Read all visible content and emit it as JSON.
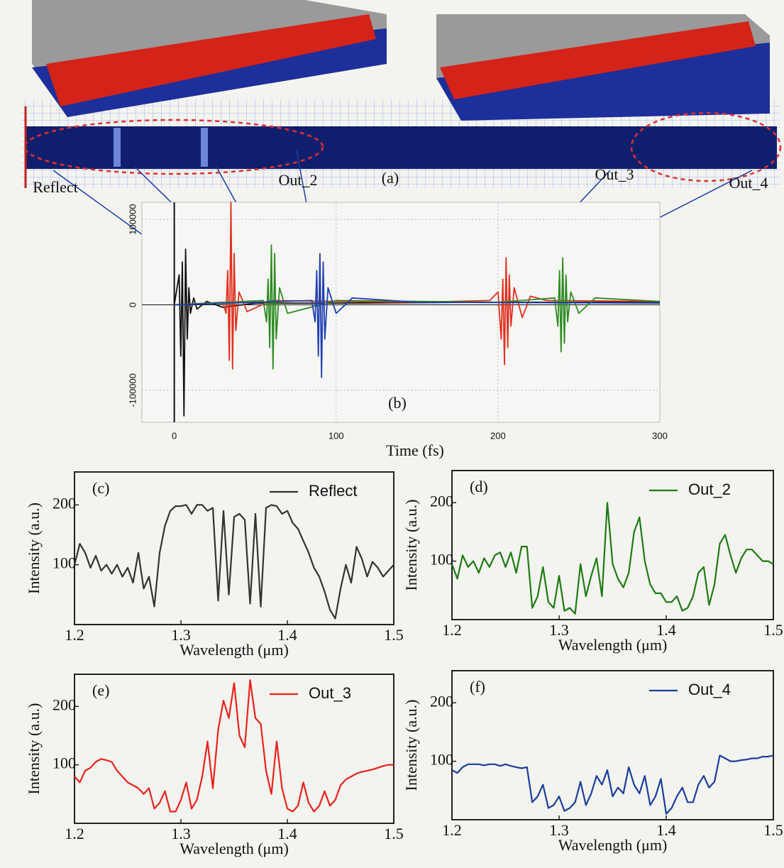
{
  "panel_a": {
    "label": "(a)",
    "ports": [
      "Reflect",
      "Out_2",
      "Out_3",
      "Out_4"
    ]
  },
  "chart_data": [
    {
      "type": "line",
      "label": "(b)",
      "xlabel": "Time (fs)",
      "xlim": [
        -20,
        300
      ],
      "ylim": [
        -137500,
        120000
      ],
      "xticks": [
        0,
        100,
        200,
        300
      ],
      "yticks": [
        -100000,
        0,
        100000
      ],
      "grid": true,
      "series": [
        {
          "color": "#111111",
          "x": [
            0,
            3,
            4,
            5,
            6,
            7,
            8,
            9,
            10,
            12,
            14,
            20,
            30,
            50,
            100,
            200,
            300
          ],
          "values": [
            0,
            35000,
            -60000,
            50000,
            -130000,
            65000,
            -40000,
            20000,
            -10000,
            8000,
            -5000,
            4000,
            -3000,
            2000,
            2000,
            3000,
            3000
          ]
        },
        {
          "color": "#e0301e",
          "x": [
            0,
            30,
            32,
            33,
            34,
            35,
            36,
            37,
            38,
            40,
            45,
            60,
            100,
            150,
            195,
            200,
            202,
            203,
            204,
            205,
            206,
            207,
            208,
            210,
            215,
            220,
            230,
            300
          ],
          "values": [
            0,
            3000,
            -10000,
            40000,
            -65000,
            120000,
            -75000,
            60000,
            -30000,
            15000,
            -8000,
            5000,
            4000,
            3000,
            5000,
            15000,
            -40000,
            30000,
            -70000,
            55000,
            -50000,
            35000,
            -25000,
            20000,
            -15000,
            10000,
            5000,
            4000
          ]
        },
        {
          "color": "#2e8b22",
          "x": [
            0,
            55,
            57,
            58,
            59,
            60,
            61,
            62,
            63,
            65,
            70,
            100,
            200,
            235,
            237,
            238,
            239,
            240,
            241,
            242,
            243,
            245,
            250,
            260,
            300
          ],
          "values": [
            0,
            5000,
            -20000,
            30000,
            -50000,
            70000,
            -75000,
            60000,
            -40000,
            20000,
            -10000,
            5000,
            3000,
            8000,
            -25000,
            40000,
            -55000,
            55000,
            -45000,
            35000,
            -20000,
            15000,
            -10000,
            8000,
            4000
          ]
        },
        {
          "color": "#1f3fb0",
          "x": [
            0,
            85,
            87,
            88,
            89,
            90,
            91,
            92,
            93,
            95,
            100,
            110,
            150,
            300
          ],
          "values": [
            0,
            5000,
            -20000,
            40000,
            -60000,
            60000,
            -85000,
            50000,
            -40000,
            20000,
            -10000,
            8000,
            3000,
            2000
          ]
        }
      ]
    },
    {
      "type": "line",
      "label": "(c)",
      "xlabel": "Wavelength (μm)",
      "ylabel": "Intensity (a.u.)",
      "xlim": [
        1.2,
        1.5
      ],
      "ylim": [
        0,
        255
      ],
      "xticks": [
        1.2,
        1.3,
        1.4,
        1.5
      ],
      "yticks": [
        100,
        200
      ],
      "legend": "top-right",
      "x": [
        1.2,
        1.205,
        1.21,
        1.215,
        1.22,
        1.225,
        1.23,
        1.235,
        1.24,
        1.245,
        1.25,
        1.255,
        1.26,
        1.265,
        1.27,
        1.275,
        1.28,
        1.285,
        1.29,
        1.295,
        1.3,
        1.305,
        1.31,
        1.315,
        1.32,
        1.325,
        1.33,
        1.335,
        1.34,
        1.345,
        1.35,
        1.355,
        1.36,
        1.365,
        1.37,
        1.375,
        1.38,
        1.385,
        1.39,
        1.395,
        1.4,
        1.405,
        1.41,
        1.415,
        1.42,
        1.425,
        1.43,
        1.435,
        1.44,
        1.445,
        1.45,
        1.455,
        1.46,
        1.465,
        1.47,
        1.475,
        1.48,
        1.485,
        1.49,
        1.495,
        1.5
      ],
      "series": [
        {
          "name": "Reflect",
          "color": "#333333",
          "values": [
            100,
            135,
            120,
            95,
            115,
            90,
            100,
            85,
            100,
            80,
            95,
            70,
            120,
            60,
            80,
            30,
            120,
            165,
            190,
            198,
            198,
            200,
            185,
            200,
            200,
            190,
            195,
            40,
            190,
            50,
            180,
            185,
            175,
            35,
            185,
            30,
            195,
            200,
            198,
            185,
            190,
            170,
            160,
            140,
            120,
            95,
            80,
            55,
            25,
            10,
            60,
            100,
            70,
            130,
            110,
            80,
            105,
            95,
            80,
            90,
            100
          ]
        }
      ]
    },
    {
      "type": "line",
      "label": "(d)",
      "xlabel": "Wavelength (μm)",
      "ylabel": "Intensity (a.u.)",
      "xlim": [
        1.2,
        1.5
      ],
      "ylim": [
        0,
        255
      ],
      "xticks": [
        1.2,
        1.3,
        1.4,
        1.5
      ],
      "yticks": [
        100,
        200
      ],
      "legend": "top-right",
      "x": [
        1.2,
        1.205,
        1.21,
        1.215,
        1.22,
        1.225,
        1.23,
        1.235,
        1.24,
        1.245,
        1.25,
        1.255,
        1.26,
        1.265,
        1.27,
        1.275,
        1.28,
        1.285,
        1.29,
        1.295,
        1.3,
        1.305,
        1.31,
        1.315,
        1.32,
        1.325,
        1.33,
        1.335,
        1.34,
        1.345,
        1.35,
        1.355,
        1.36,
        1.365,
        1.37,
        1.375,
        1.38,
        1.385,
        1.39,
        1.395,
        1.4,
        1.405,
        1.41,
        1.415,
        1.42,
        1.425,
        1.43,
        1.435,
        1.44,
        1.445,
        1.45,
        1.455,
        1.46,
        1.465,
        1.47,
        1.475,
        1.48,
        1.485,
        1.49,
        1.495,
        1.5
      ],
      "series": [
        {
          "name": "Out_2",
          "color": "#1e7a14",
          "values": [
            95,
            70,
            110,
            90,
            100,
            80,
            105,
            90,
            110,
            115,
            90,
            115,
            80,
            125,
            125,
            20,
            40,
            90,
            30,
            20,
            75,
            15,
            20,
            10,
            95,
            40,
            75,
            105,
            40,
            200,
            95,
            70,
            55,
            80,
            150,
            175,
            100,
            60,
            45,
            45,
            30,
            30,
            40,
            15,
            20,
            40,
            80,
            90,
            25,
            60,
            130,
            145,
            110,
            80,
            105,
            120,
            120,
            110,
            100,
            100,
            95
          ]
        }
      ]
    },
    {
      "type": "line",
      "label": "(e)",
      "xlabel": "Wavelength (μm)",
      "ylabel": "Intensity (a.u.)",
      "xlim": [
        1.2,
        1.5
      ],
      "ylim": [
        0,
        255
      ],
      "xticks": [
        1.2,
        1.3,
        1.4,
        1.5
      ],
      "yticks": [
        100,
        200
      ],
      "legend": "top-right",
      "x": [
        1.2,
        1.205,
        1.21,
        1.215,
        1.22,
        1.225,
        1.23,
        1.235,
        1.24,
        1.245,
        1.25,
        1.255,
        1.26,
        1.265,
        1.27,
        1.275,
        1.28,
        1.285,
        1.29,
        1.295,
        1.3,
        1.305,
        1.31,
        1.315,
        1.32,
        1.325,
        1.33,
        1.335,
        1.34,
        1.345,
        1.35,
        1.355,
        1.36,
        1.365,
        1.37,
        1.375,
        1.38,
        1.385,
        1.39,
        1.395,
        1.4,
        1.405,
        1.41,
        1.415,
        1.42,
        1.425,
        1.43,
        1.435,
        1.44,
        1.445,
        1.45,
        1.455,
        1.46,
        1.465,
        1.47,
        1.475,
        1.48,
        1.485,
        1.49,
        1.495,
        1.5
      ],
      "series": [
        {
          "name": "Out_3",
          "color": "#e8231a",
          "values": [
            80,
            70,
            90,
            95,
            105,
            110,
            108,
            105,
            90,
            80,
            70,
            65,
            60,
            50,
            60,
            25,
            35,
            55,
            20,
            20,
            40,
            70,
            25,
            40,
            80,
            140,
            60,
            160,
            210,
            180,
            240,
            150,
            130,
            245,
            180,
            170,
            90,
            50,
            140,
            60,
            25,
            20,
            30,
            70,
            35,
            20,
            30,
            55,
            30,
            40,
            65,
            75,
            80,
            85,
            88,
            90,
            92,
            95,
            98,
            100,
            100
          ]
        }
      ]
    },
    {
      "type": "line",
      "label": "(f)",
      "xlabel": "Wavelength (μm)",
      "ylabel": "Intensity (a.u.)",
      "xlim": [
        1.2,
        1.5
      ],
      "ylim": [
        0,
        255
      ],
      "xticks": [
        1.2,
        1.3,
        1.4,
        1.5
      ],
      "yticks": [
        100,
        200
      ],
      "legend": "top-right",
      "x": [
        1.2,
        1.205,
        1.21,
        1.215,
        1.22,
        1.225,
        1.23,
        1.235,
        1.24,
        1.245,
        1.25,
        1.255,
        1.26,
        1.265,
        1.27,
        1.275,
        1.28,
        1.285,
        1.29,
        1.295,
        1.3,
        1.305,
        1.31,
        1.315,
        1.32,
        1.325,
        1.33,
        1.335,
        1.34,
        1.345,
        1.35,
        1.355,
        1.36,
        1.365,
        1.37,
        1.375,
        1.38,
        1.385,
        1.39,
        1.395,
        1.4,
        1.405,
        1.41,
        1.415,
        1.42,
        1.425,
        1.43,
        1.435,
        1.44,
        1.445,
        1.45,
        1.455,
        1.46,
        1.465,
        1.47,
        1.475,
        1.48,
        1.485,
        1.49,
        1.495,
        1.5
      ],
      "series": [
        {
          "name": "Out_4",
          "color": "#1a3e9e",
          "values": [
            85,
            80,
            90,
            95,
            95,
            95,
            93,
            95,
            95,
            92,
            95,
            92,
            90,
            88,
            90,
            30,
            40,
            60,
            20,
            25,
            40,
            15,
            20,
            30,
            65,
            25,
            45,
            75,
            60,
            85,
            40,
            55,
            45,
            90,
            60,
            45,
            75,
            25,
            40,
            70,
            10,
            20,
            40,
            55,
            30,
            30,
            60,
            75,
            55,
            65,
            110,
            105,
            100,
            100,
            102,
            103,
            105,
            105,
            108,
            108,
            110
          ]
        }
      ]
    }
  ]
}
